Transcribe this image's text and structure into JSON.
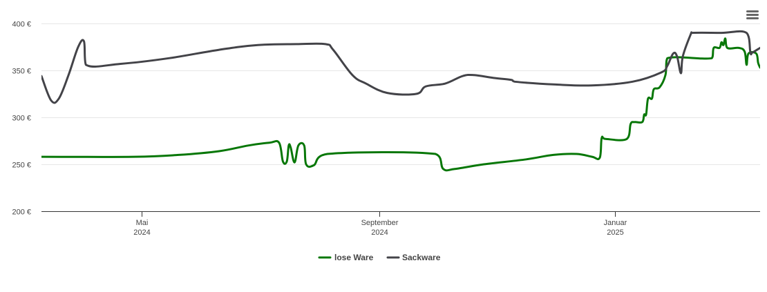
{
  "chart_data": {
    "type": "line",
    "title": "",
    "xlabel": "",
    "ylabel": "",
    "currency": "€",
    "ylim": [
      200,
      400
    ],
    "y_ticks": [
      200,
      250,
      300,
      350,
      400
    ],
    "xlim": [
      "2024-03-10",
      "2025-03-17"
    ],
    "x_ticks": [
      {
        "date": "2024-05-01",
        "label": "Mai",
        "year": "2024"
      },
      {
        "date": "2024-09-01",
        "label": "September",
        "year": "2024"
      },
      {
        "date": "2025-01-01",
        "label": "Januar",
        "year": "2025"
      }
    ],
    "grid": true,
    "legend_position": "bottom",
    "series": [
      {
        "name": "lose Ware",
        "color": "#077707",
        "points": [
          [
            "2024-03-10",
            258
          ],
          [
            "2024-04-27",
            258
          ],
          [
            "2024-05-20",
            260
          ],
          [
            "2024-06-10",
            264
          ],
          [
            "2024-06-25",
            270
          ],
          [
            "2024-07-06",
            273
          ],
          [
            "2024-07-11",
            273
          ],
          [
            "2024-07-13",
            253
          ],
          [
            "2024-07-15",
            253
          ],
          [
            "2024-07-16",
            270
          ],
          [
            "2024-07-17",
            268
          ],
          [
            "2024-07-19",
            252
          ],
          [
            "2024-07-21",
            270
          ],
          [
            "2024-07-24",
            270
          ],
          [
            "2024-07-25",
            250
          ],
          [
            "2024-07-29",
            249
          ],
          [
            "2024-08-05",
            261
          ],
          [
            "2024-09-30",
            261
          ],
          [
            "2024-10-04",
            245
          ],
          [
            "2024-10-10",
            245
          ],
          [
            "2024-10-25",
            250
          ],
          [
            "2024-11-15",
            255
          ],
          [
            "2024-11-30",
            260
          ],
          [
            "2024-12-12",
            261
          ],
          [
            "2024-12-20",
            258
          ],
          [
            "2024-12-24",
            257
          ],
          [
            "2024-12-25",
            278
          ],
          [
            "2024-12-27",
            277
          ],
          [
            "2025-01-07",
            277
          ],
          [
            "2025-01-09",
            293
          ],
          [
            "2025-01-11",
            295
          ],
          [
            "2025-01-15",
            295
          ],
          [
            "2025-01-16",
            303
          ],
          [
            "2025-01-17",
            303
          ],
          [
            "2025-01-18",
            320
          ],
          [
            "2025-01-20",
            320
          ],
          [
            "2025-01-21",
            330
          ],
          [
            "2025-01-24",
            332
          ],
          [
            "2025-01-27",
            345
          ],
          [
            "2025-01-28",
            363
          ],
          [
            "2025-02-20",
            363
          ],
          [
            "2025-02-21",
            374
          ],
          [
            "2025-02-24",
            374
          ],
          [
            "2025-02-25",
            380
          ],
          [
            "2025-02-26",
            377
          ],
          [
            "2025-02-27",
            384
          ],
          [
            "2025-02-28",
            374
          ],
          [
            "2025-03-06",
            374
          ],
          [
            "2025-03-09",
            370
          ],
          [
            "2025-03-10",
            356
          ],
          [
            "2025-03-11",
            368
          ],
          [
            "2025-03-15",
            368
          ],
          [
            "2025-03-16",
            358
          ],
          [
            "2025-03-17",
            353
          ]
        ]
      },
      {
        "name": "Sackware",
        "color": "#434348",
        "points": [
          [
            "2024-03-10",
            344
          ],
          [
            "2024-03-15",
            318
          ],
          [
            "2024-03-19",
            320
          ],
          [
            "2024-03-24",
            345
          ],
          [
            "2024-03-29",
            375
          ],
          [
            "2024-04-01",
            381
          ],
          [
            "2024-04-02",
            356
          ],
          [
            "2024-04-20",
            357
          ],
          [
            "2024-05-15",
            363
          ],
          [
            "2024-06-10",
            372
          ],
          [
            "2024-06-30",
            377
          ],
          [
            "2024-07-20",
            378
          ],
          [
            "2024-08-04",
            378
          ],
          [
            "2024-08-08",
            372
          ],
          [
            "2024-08-18",
            345
          ],
          [
            "2024-08-25",
            336
          ],
          [
            "2024-09-05",
            326
          ],
          [
            "2024-09-20",
            325
          ],
          [
            "2024-09-25",
            333
          ],
          [
            "2024-10-05",
            336
          ],
          [
            "2024-10-14",
            344
          ],
          [
            "2024-10-20",
            345
          ],
          [
            "2024-10-30",
            342
          ],
          [
            "2024-11-08",
            340
          ],
          [
            "2024-11-10",
            338
          ],
          [
            "2024-12-01",
            335
          ],
          [
            "2024-12-20",
            334
          ],
          [
            "2025-01-10",
            338
          ],
          [
            "2025-01-25",
            348
          ],
          [
            "2025-01-28",
            355
          ],
          [
            "2025-01-31",
            368
          ],
          [
            "2025-02-02",
            365
          ],
          [
            "2025-02-04",
            347
          ],
          [
            "2025-02-05",
            365
          ],
          [
            "2025-02-09",
            388
          ],
          [
            "2025-02-10",
            390
          ],
          [
            "2025-02-25",
            390
          ],
          [
            "2025-03-10",
            390
          ],
          [
            "2025-03-12",
            369
          ],
          [
            "2025-03-13",
            369
          ],
          [
            "2025-03-17",
            374
          ]
        ]
      }
    ]
  },
  "menu": {
    "icon": "hamburger-menu-icon"
  }
}
